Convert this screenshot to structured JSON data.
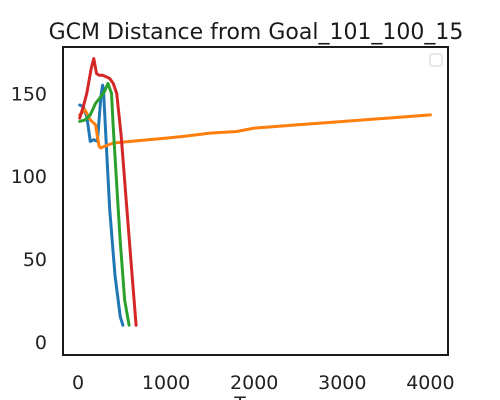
{
  "chart_data": {
    "type": "line",
    "title": "GCM Distance from Goal_101_100_15",
    "xlabel": "T",
    "ylabel": "",
    "xlim": [
      -170,
      4200
    ],
    "ylim": [
      -8,
      178
    ],
    "xticks": [
      0,
      1000,
      2000,
      3000,
      4000
    ],
    "yticks": [
      0,
      50,
      100,
      150
    ],
    "legend": {
      "position": "top-right",
      "entries": []
    },
    "series": [
      {
        "name": "series-blue",
        "color": "#1f77b4",
        "x": [
          20,
          60,
          100,
          140,
          180,
          220,
          260,
          280,
          290,
          320,
          360,
          420,
          480,
          510
        ],
        "y": [
          143,
          142,
          136,
          121,
          122,
          121,
          148,
          155,
          152,
          120,
          80,
          40,
          15,
          10
        ]
      },
      {
        "name": "series-orange",
        "color": "#ff7f0e",
        "x": [
          20,
          80,
          140,
          200,
          220,
          240,
          260,
          300,
          400,
          600,
          800,
          1000,
          1200,
          1500,
          1800,
          2000,
          2500,
          3000,
          3500,
          4000
        ],
        "y": [
          137,
          140,
          134,
          131,
          124,
          118,
          117,
          118,
          120,
          121,
          122,
          123,
          124,
          126,
          127,
          129,
          131,
          133,
          135,
          137
        ]
      },
      {
        "name": "series-green",
        "color": "#2ca02c",
        "x": [
          20,
          80,
          140,
          200,
          260,
          300,
          340,
          380,
          400,
          440,
          480,
          530,
          580
        ],
        "y": [
          133,
          134,
          137,
          144,
          148,
          151,
          156,
          150,
          130,
          95,
          60,
          25,
          10
        ]
      },
      {
        "name": "series-red",
        "color": "#d62728",
        "x": [
          20,
          60,
          100,
          150,
          180,
          210,
          240,
          280,
          320,
          360,
          400,
          440,
          490,
          540,
          600,
          660
        ],
        "y": [
          135,
          142,
          150,
          165,
          171,
          162,
          161,
          161,
          160,
          159,
          156,
          150,
          125,
          90,
          50,
          10
        ]
      }
    ]
  }
}
